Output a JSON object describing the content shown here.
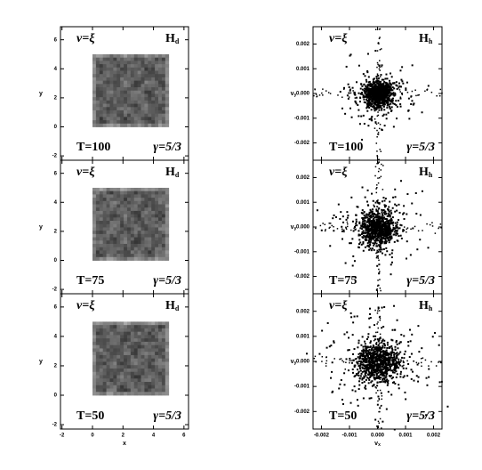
{
  "figure": {
    "columns": [
      {
        "xlabel": "x",
        "ylabel": "y",
        "xlim": [
          -2.1,
          6.3
        ],
        "ylim": [
          -2.3,
          6.9
        ],
        "xticks": [
          -2,
          0,
          2,
          4,
          6
        ],
        "yticks": [
          -2,
          0,
          2,
          4,
          6
        ],
        "panels": [
          {
            "nu": "ν=ξ",
            "model": "H",
            "model_sub": "d",
            "time": "T=100",
            "gamma": "γ=5/3"
          },
          {
            "nu": "ν=ξ",
            "model": "H",
            "model_sub": "d",
            "time": "T=75",
            "gamma": "γ=5/3"
          },
          {
            "nu": "ν=ξ",
            "model": "H",
            "model_sub": "d",
            "time": "T=50",
            "gamma": "γ=5/3"
          }
        ]
      },
      {
        "xlabel": "v",
        "xlabel_sub": "x",
        "ylabel": "v",
        "ylabel_sub": "y",
        "xlim": [
          -0.0023,
          0.0023
        ],
        "ylim": [
          -0.0027,
          0.0027
        ],
        "xticks": [
          {
            "value": -0.002,
            "label": "-0.002"
          },
          {
            "value": -0.001,
            "label": "-0.001"
          },
          {
            "value": 0,
            "label": "0.000"
          },
          {
            "value": 0.001,
            "label": "0.001"
          },
          {
            "value": 0.002,
            "label": "0.002"
          }
        ],
        "yticks": [
          {
            "value": -0.002,
            "label": "-0.002"
          },
          {
            "value": -0.001,
            "label": "-0.001"
          },
          {
            "value": 0,
            "label": "0.000"
          },
          {
            "value": 0.001,
            "label": "0.001"
          },
          {
            "value": 0.002,
            "label": "0.002"
          }
        ],
        "panels": [
          {
            "nu": "ν=ξ",
            "model": "H",
            "model_sub": "h",
            "time": "T=100",
            "gamma": "γ=5/3"
          },
          {
            "nu": "ν=ξ",
            "model": "H",
            "model_sub": "h",
            "time": "T=75",
            "gamma": "γ=5/3"
          },
          {
            "nu": "ν=ξ",
            "model": "H",
            "model_sub": "h",
            "time": "T=50",
            "gamma": "γ=5/3"
          }
        ]
      }
    ]
  }
}
